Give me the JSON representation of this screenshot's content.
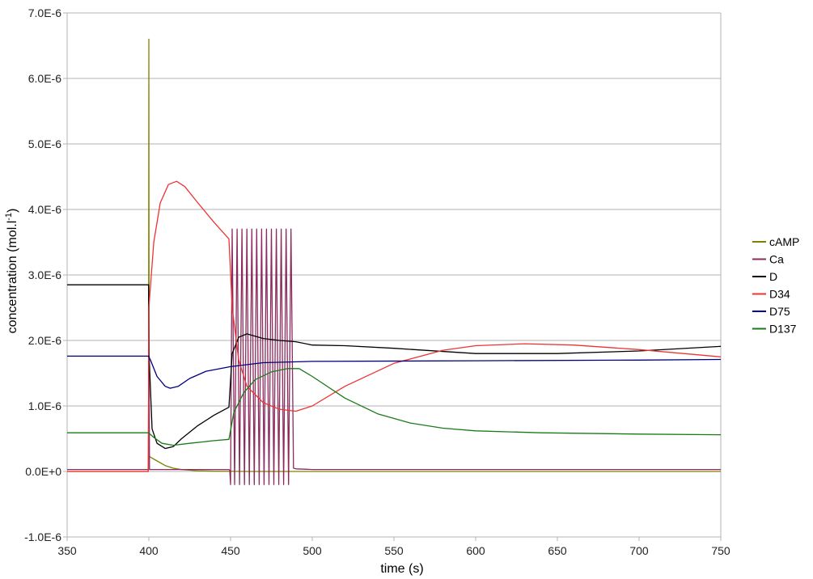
{
  "chart_data": {
    "type": "line",
    "title": "",
    "xlabel": "time (s)",
    "ylabel_main": "concentration (mol.l",
    "ylabel_sup": "-1",
    "ylabel_close": ")",
    "xlim": [
      350,
      750
    ],
    "ylim": [
      -1e-06,
      7e-06
    ],
    "x_ticks": [
      350,
      400,
      450,
      500,
      550,
      600,
      650,
      700,
      750
    ],
    "x_tick_labels": [
      "350",
      "400",
      "450",
      "500",
      "550",
      "600",
      "650",
      "700",
      "750"
    ],
    "y_ticks": [
      -1e-06,
      0,
      1e-06,
      2e-06,
      3e-06,
      4e-06,
      5e-06,
      6e-06,
      7e-06
    ],
    "y_tick_labels": [
      "-1.0E-6",
      "0.0E+0",
      "1.0E-6",
      "2.0E-6",
      "3.0E-6",
      "4.0E-6",
      "5.0E-6",
      "6.0E-6",
      "7.0E-6"
    ],
    "grid": "horizontal",
    "legend_position": "right",
    "series": [
      {
        "name": "cAMP",
        "color": "#808000",
        "points": [
          [
            350,
            0
          ],
          [
            399.6,
            0
          ],
          [
            399.8,
            3e-07
          ],
          [
            400,
            6.6e-06
          ],
          [
            400.2,
            2.3e-07
          ],
          [
            405,
            1.6e-07
          ],
          [
            410,
            9e-08
          ],
          [
            415,
            5e-08
          ],
          [
            420,
            3e-08
          ],
          [
            430,
            1e-08
          ],
          [
            440,
            5e-09
          ],
          [
            460,
            0
          ],
          [
            750,
            0
          ]
        ]
      },
      {
        "name": "Ca",
        "color": "#8b2a5e",
        "points": [
          [
            350,
            3e-08
          ],
          [
            399.7,
            3e-08
          ],
          [
            400,
            2.6e-06
          ],
          [
            400.4,
            3e-08
          ],
          [
            449,
            3e-08
          ],
          [
            449.5,
            2e-08
          ],
          [
            450,
            -2e-07
          ],
          [
            451,
            3.7e-06
          ],
          [
            452.5,
            -2e-07
          ],
          [
            454,
            3.7e-06
          ],
          [
            455.5,
            -2e-07
          ],
          [
            457,
            3.7e-06
          ],
          [
            458.5,
            -2e-07
          ],
          [
            460,
            3.7e-06
          ],
          [
            461.5,
            -2e-07
          ],
          [
            463,
            3.7e-06
          ],
          [
            464.5,
            -2e-07
          ],
          [
            466,
            3.7e-06
          ],
          [
            467.5,
            -2e-07
          ],
          [
            469,
            3.7e-06
          ],
          [
            470.5,
            -2e-07
          ],
          [
            472,
            3.7e-06
          ],
          [
            473.5,
            -2e-07
          ],
          [
            475,
            3.7e-06
          ],
          [
            476.5,
            -2e-07
          ],
          [
            478,
            3.7e-06
          ],
          [
            479.5,
            -2e-07
          ],
          [
            481,
            3.7e-06
          ],
          [
            482.5,
            -2e-07
          ],
          [
            484,
            3.7e-06
          ],
          [
            485.5,
            -2e-07
          ],
          [
            487,
            3.7e-06
          ],
          [
            488.5,
            5e-08
          ],
          [
            490,
            4e-08
          ],
          [
            500,
            3e-08
          ],
          [
            750,
            3e-08
          ]
        ]
      },
      {
        "name": "D",
        "color": "#000000",
        "points": [
          [
            350,
            2.85e-06
          ],
          [
            399.8,
            2.85e-06
          ],
          [
            400.1,
            1.8e-06
          ],
          [
            402,
            6.5e-07
          ],
          [
            405,
            4.3e-07
          ],
          [
            410,
            3.5e-07
          ],
          [
            415,
            3.8e-07
          ],
          [
            420,
            5e-07
          ],
          [
            430,
            7e-07
          ],
          [
            440,
            8.6e-07
          ],
          [
            449,
            9.8e-07
          ],
          [
            451,
            1.8e-06
          ],
          [
            455,
            2.05e-06
          ],
          [
            460,
            2.1e-06
          ],
          [
            470,
            2.03e-06
          ],
          [
            480,
            2e-06
          ],
          [
            490,
            1.98e-06
          ],
          [
            500,
            1.93e-06
          ],
          [
            520,
            1.92e-06
          ],
          [
            550,
            1.88e-06
          ],
          [
            600,
            1.8e-06
          ],
          [
            650,
            1.8e-06
          ],
          [
            700,
            1.84e-06
          ],
          [
            750,
            1.91e-06
          ]
        ]
      },
      {
        "name": "D34",
        "color": "#ee3333",
        "points": [
          [
            350,
            0
          ],
          [
            399.7,
            0
          ],
          [
            400,
            2.5e-06
          ],
          [
            403,
            3.5e-06
          ],
          [
            407,
            4.1e-06
          ],
          [
            412,
            4.38e-06
          ],
          [
            417,
            4.43e-06
          ],
          [
            422,
            4.35e-06
          ],
          [
            430,
            4.1e-06
          ],
          [
            440,
            3.8e-06
          ],
          [
            449,
            3.55e-06
          ],
          [
            451,
            2.5e-06
          ],
          [
            455,
            1.7e-06
          ],
          [
            460,
            1.3e-06
          ],
          [
            470,
            1.05e-06
          ],
          [
            480,
            9.5e-07
          ],
          [
            490,
            9.2e-07
          ],
          [
            500,
            1e-06
          ],
          [
            520,
            1.3e-06
          ],
          [
            550,
            1.65e-06
          ],
          [
            580,
            1.85e-06
          ],
          [
            600,
            1.92e-06
          ],
          [
            630,
            1.95e-06
          ],
          [
            660,
            1.93e-06
          ],
          [
            700,
            1.86e-06
          ],
          [
            750,
            1.75e-06
          ]
        ]
      },
      {
        "name": "D75",
        "color": "#00007a",
        "points": [
          [
            350,
            1.76e-06
          ],
          [
            399.8,
            1.76e-06
          ],
          [
            401,
            1.7e-06
          ],
          [
            405,
            1.45e-06
          ],
          [
            410,
            1.3e-06
          ],
          [
            413,
            1.27e-06
          ],
          [
            418,
            1.3e-06
          ],
          [
            425,
            1.42e-06
          ],
          [
            435,
            1.53e-06
          ],
          [
            450,
            1.6e-06
          ],
          [
            470,
            1.66e-06
          ],
          [
            500,
            1.68e-06
          ],
          [
            600,
            1.69e-06
          ],
          [
            700,
            1.7e-06
          ],
          [
            750,
            1.71e-06
          ]
        ]
      },
      {
        "name": "D137",
        "color": "#1a7a1a",
        "points": [
          [
            350,
            5.9e-07
          ],
          [
            399.8,
            5.9e-07
          ],
          [
            403,
            5.2e-07
          ],
          [
            408,
            4.3e-07
          ],
          [
            415,
            4e-07
          ],
          [
            425,
            4.3e-07
          ],
          [
            440,
            4.7e-07
          ],
          [
            449,
            4.9e-07
          ],
          [
            452,
            9e-07
          ],
          [
            458,
            1.2e-06
          ],
          [
            465,
            1.4e-06
          ],
          [
            475,
            1.52e-06
          ],
          [
            485,
            1.57e-06
          ],
          [
            492,
            1.57e-06
          ],
          [
            500,
            1.45e-06
          ],
          [
            520,
            1.12e-06
          ],
          [
            540,
            8.8e-07
          ],
          [
            560,
            7.4e-07
          ],
          [
            580,
            6.6e-07
          ],
          [
            600,
            6.2e-07
          ],
          [
            640,
            5.9e-07
          ],
          [
            700,
            5.7e-07
          ],
          [
            750,
            5.6e-07
          ]
        ]
      }
    ]
  }
}
